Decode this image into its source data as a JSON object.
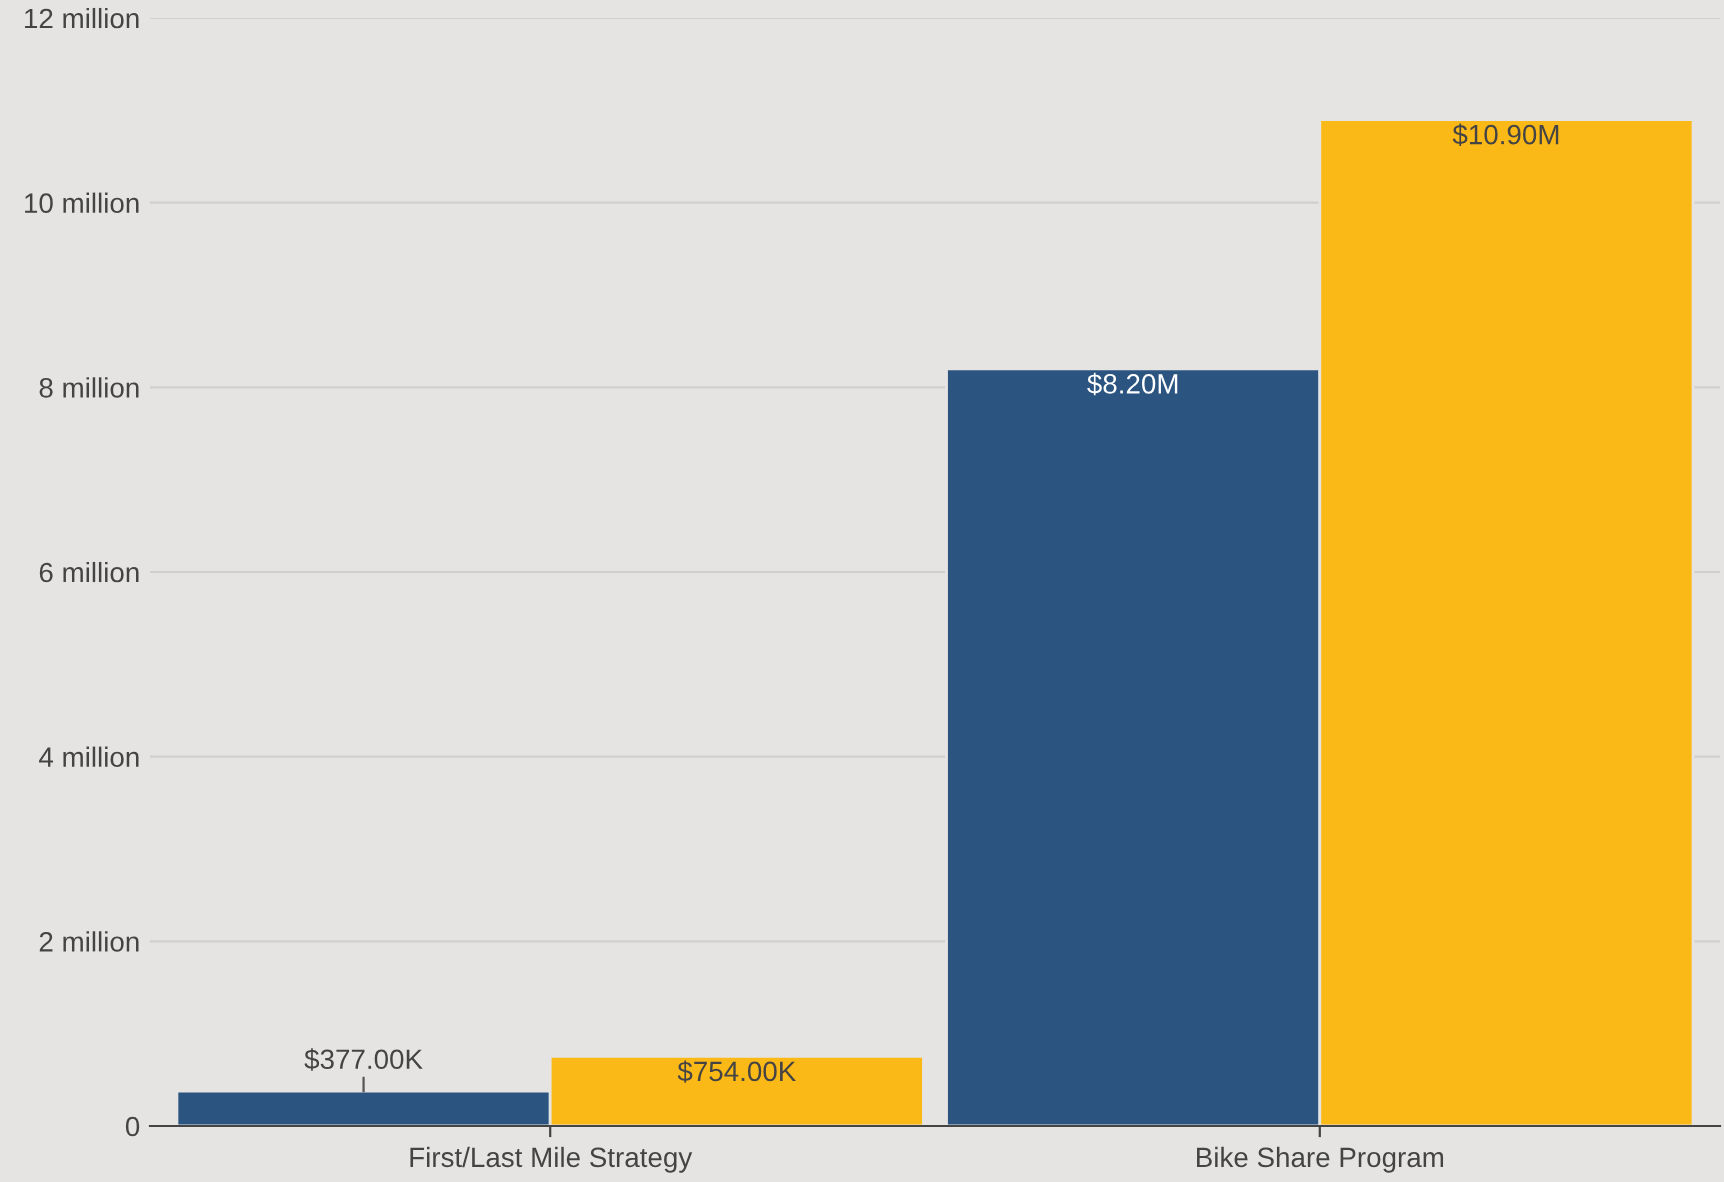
{
  "chart_data": {
    "type": "bar",
    "categories": [
      "First/Last Mile Strategy",
      "Bike Share Program"
    ],
    "series": [
      {
        "color": "#2b5580",
        "values": [
          377000,
          8200000
        ],
        "value_labels": [
          "$377.00K",
          "$8.20M"
        ]
      },
      {
        "color": "#fbb917",
        "values": [
          754000,
          10900000
        ],
        "value_labels": [
          "$754.00K",
          "$10.90M"
        ]
      }
    ],
    "ylim": [
      0,
      12000000
    ],
    "yticks": [
      {
        "value": 0,
        "label": "0"
      },
      {
        "value": 2000000,
        "label": "2 million"
      },
      {
        "value": 4000000,
        "label": "4 million"
      },
      {
        "value": 6000000,
        "label": "6 million"
      },
      {
        "value": 8000000,
        "label": "8 million"
      },
      {
        "value": 10000000,
        "label": "10 million"
      },
      {
        "value": 12000000,
        "label": "12 million"
      }
    ],
    "grid": "y",
    "legend": false
  }
}
